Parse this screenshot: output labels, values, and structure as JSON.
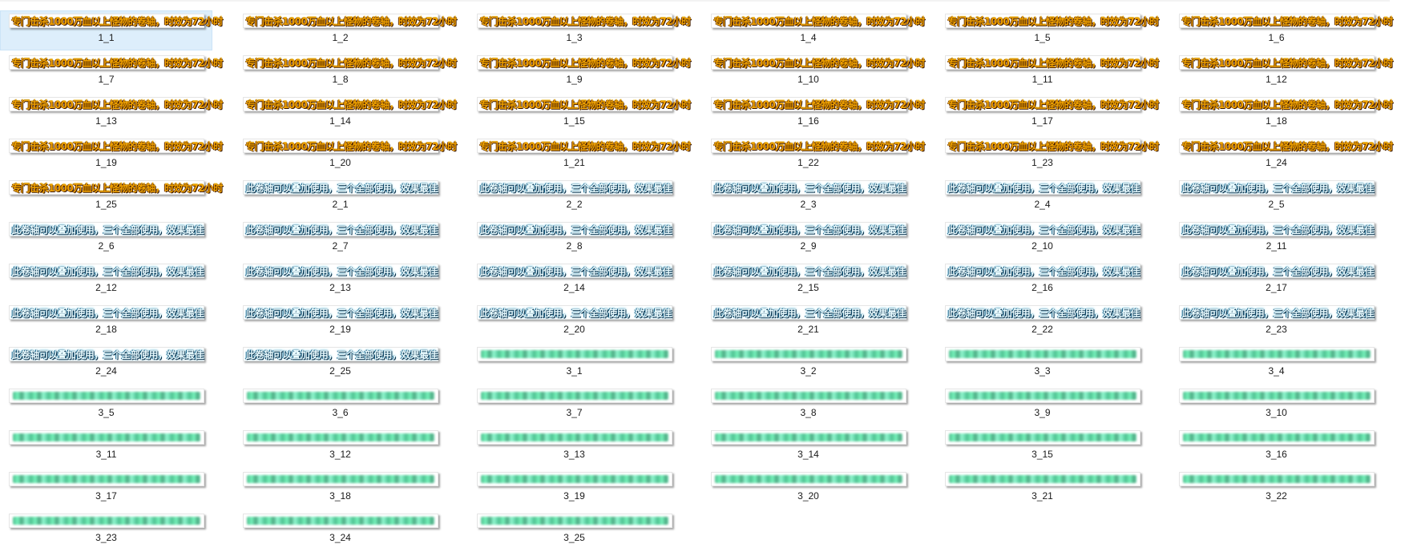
{
  "files": [
    {
      "label": "1_1",
      "style": "gold",
      "caption": "专门击杀1000万血以上怪物的卷轴，时效为72小时",
      "selected": true
    },
    {
      "label": "1_2",
      "style": "gold",
      "caption": "专门击杀1000万血以上怪物的卷轴，时效为72小时"
    },
    {
      "label": "1_3",
      "style": "gold",
      "caption": "专门击杀1000万血以上怪物的卷轴，时效为72小时"
    },
    {
      "label": "1_4",
      "style": "gold",
      "caption": "专门击杀1000万血以上怪物的卷轴，时效为72小时"
    },
    {
      "label": "1_5",
      "style": "gold",
      "caption": "专门击杀1000万血以上怪物的卷轴，时效为72小时"
    },
    {
      "label": "1_6",
      "style": "gold",
      "caption": "专门击杀1000万血以上怪物的卷轴，时效为72小时"
    },
    {
      "label": "1_7",
      "style": "gold",
      "caption": "专门击杀1000万血以上怪物的卷轴，时效为72小时"
    },
    {
      "label": "1_8",
      "style": "gold",
      "caption": "专门击杀1000万血以上怪物的卷轴，时效为72小时"
    },
    {
      "label": "1_9",
      "style": "gold",
      "caption": "专门击杀1000万血以上怪物的卷轴，时效为72小时"
    },
    {
      "label": "1_10",
      "style": "gold",
      "caption": "专门击杀1000万血以上怪物的卷轴，时效为72小时"
    },
    {
      "label": "1_11",
      "style": "gold",
      "caption": "专门击杀1000万血以上怪物的卷轴，时效为72小时"
    },
    {
      "label": "1_12",
      "style": "gold",
      "caption": "专门击杀1000万血以上怪物的卷轴，时效为72小时"
    },
    {
      "label": "1_13",
      "style": "gold",
      "caption": "专门击杀1000万血以上怪物的卷轴，时效为72小时"
    },
    {
      "label": "1_14",
      "style": "gold",
      "caption": "专门击杀1000万血以上怪物的卷轴，时效为72小时"
    },
    {
      "label": "1_15",
      "style": "gold",
      "caption": "专门击杀1000万血以上怪物的卷轴，时效为72小时"
    },
    {
      "label": "1_16",
      "style": "gold",
      "caption": "专门击杀1000万血以上怪物的卷轴，时效为72小时"
    },
    {
      "label": "1_17",
      "style": "gold",
      "caption": "专门击杀1000万血以上怪物的卷轴，时效为72小时"
    },
    {
      "label": "1_18",
      "style": "gold",
      "caption": "专门击杀1000万血以上怪物的卷轴，时效为72小时"
    },
    {
      "label": "1_19",
      "style": "gold",
      "caption": "专门击杀1000万血以上怪物的卷轴，时效为72小时"
    },
    {
      "label": "1_20",
      "style": "gold",
      "caption": "专门击杀1000万血以上怪物的卷轴，时效为72小时"
    },
    {
      "label": "1_21",
      "style": "gold",
      "caption": "专门击杀1000万血以上怪物的卷轴，时效为72小时"
    },
    {
      "label": "1_22",
      "style": "gold",
      "caption": "专门击杀1000万血以上怪物的卷轴，时效为72小时"
    },
    {
      "label": "1_23",
      "style": "gold",
      "caption": "专门击杀1000万血以上怪物的卷轴，时效为72小时"
    },
    {
      "label": "1_24",
      "style": "gold",
      "caption": "专门击杀1000万血以上怪物的卷轴，时效为72小时"
    },
    {
      "label": "1_25",
      "style": "gold",
      "caption": "专门击杀1000万血以上怪物的卷轴，时效为72小时"
    },
    {
      "label": "2_1",
      "style": "blue",
      "caption": "此卷轴可以叠加使用，三个全部使用，效果最佳"
    },
    {
      "label": "2_2",
      "style": "blue",
      "caption": "此卷轴可以叠加使用，三个全部使用，效果最佳"
    },
    {
      "label": "2_3",
      "style": "blue",
      "caption": "此卷轴可以叠加使用，三个全部使用，效果最佳"
    },
    {
      "label": "2_4",
      "style": "blue",
      "caption": "此卷轴可以叠加使用，三个全部使用，效果最佳"
    },
    {
      "label": "2_5",
      "style": "blue",
      "caption": "此卷轴可以叠加使用，三个全部使用，效果最佳"
    },
    {
      "label": "2_6",
      "style": "blue",
      "caption": "此卷轴可以叠加使用，三个全部使用，效果最佳"
    },
    {
      "label": "2_7",
      "style": "blue",
      "caption": "此卷轴可以叠加使用，三个全部使用，效果最佳"
    },
    {
      "label": "2_8",
      "style": "blue",
      "caption": "此卷轴可以叠加使用，三个全部使用，效果最佳"
    },
    {
      "label": "2_9",
      "style": "blue",
      "caption": "此卷轴可以叠加使用，三个全部使用，效果最佳"
    },
    {
      "label": "2_10",
      "style": "blue",
      "caption": "此卷轴可以叠加使用，三个全部使用，效果最佳"
    },
    {
      "label": "2_11",
      "style": "blue",
      "caption": "此卷轴可以叠加使用，三个全部使用，效果最佳"
    },
    {
      "label": "2_12",
      "style": "blue",
      "caption": "此卷轴可以叠加使用，三个全部使用，效果最佳"
    },
    {
      "label": "2_13",
      "style": "blue",
      "caption": "此卷轴可以叠加使用，三个全部使用，效果最佳"
    },
    {
      "label": "2_14",
      "style": "blue",
      "caption": "此卷轴可以叠加使用，三个全部使用，效果最佳"
    },
    {
      "label": "2_15",
      "style": "blue",
      "caption": "此卷轴可以叠加使用，三个全部使用，效果最佳"
    },
    {
      "label": "2_16",
      "style": "blue",
      "caption": "此卷轴可以叠加使用，三个全部使用，效果最佳"
    },
    {
      "label": "2_17",
      "style": "blue",
      "caption": "此卷轴可以叠加使用，三个全部使用，效果最佳"
    },
    {
      "label": "2_18",
      "style": "blue",
      "caption": "此卷轴可以叠加使用，三个全部使用，效果最佳"
    },
    {
      "label": "2_19",
      "style": "blue",
      "caption": "此卷轴可以叠加使用，三个全部使用，效果最佳"
    },
    {
      "label": "2_20",
      "style": "blue",
      "caption": "此卷轴可以叠加使用，三个全部使用，效果最佳"
    },
    {
      "label": "2_21",
      "style": "blue",
      "caption": "此卷轴可以叠加使用，三个全部使用，效果最佳"
    },
    {
      "label": "2_22",
      "style": "blue",
      "caption": "此卷轴可以叠加使用，三个全部使用，效果最佳"
    },
    {
      "label": "2_23",
      "style": "blue",
      "caption": "此卷轴可以叠加使用，三个全部使用，效果最佳"
    },
    {
      "label": "2_24",
      "style": "blue",
      "caption": "此卷轴可以叠加使用，三个全部使用，效果最佳"
    },
    {
      "label": "2_25",
      "style": "blue",
      "caption": "此卷轴可以叠加使用，三个全部使用，效果最佳"
    },
    {
      "label": "3_1",
      "style": "green"
    },
    {
      "label": "3_2",
      "style": "green"
    },
    {
      "label": "3_3",
      "style": "green"
    },
    {
      "label": "3_4",
      "style": "green"
    },
    {
      "label": "3_5",
      "style": "green"
    },
    {
      "label": "3_6",
      "style": "green"
    },
    {
      "label": "3_7",
      "style": "green"
    },
    {
      "label": "3_8",
      "style": "green"
    },
    {
      "label": "3_9",
      "style": "green"
    },
    {
      "label": "3_10",
      "style": "green"
    },
    {
      "label": "3_11",
      "style": "green"
    },
    {
      "label": "3_12",
      "style": "green"
    },
    {
      "label": "3_13",
      "style": "green"
    },
    {
      "label": "3_14",
      "style": "green"
    },
    {
      "label": "3_15",
      "style": "green"
    },
    {
      "label": "3_16",
      "style": "green"
    },
    {
      "label": "3_17",
      "style": "green"
    },
    {
      "label": "3_18",
      "style": "green"
    },
    {
      "label": "3_19",
      "style": "green"
    },
    {
      "label": "3_20",
      "style": "green"
    },
    {
      "label": "3_21",
      "style": "green"
    },
    {
      "label": "3_22",
      "style": "green"
    },
    {
      "label": "3_23",
      "style": "green"
    },
    {
      "label": "3_24",
      "style": "green"
    },
    {
      "label": "3_25",
      "style": "green"
    }
  ]
}
